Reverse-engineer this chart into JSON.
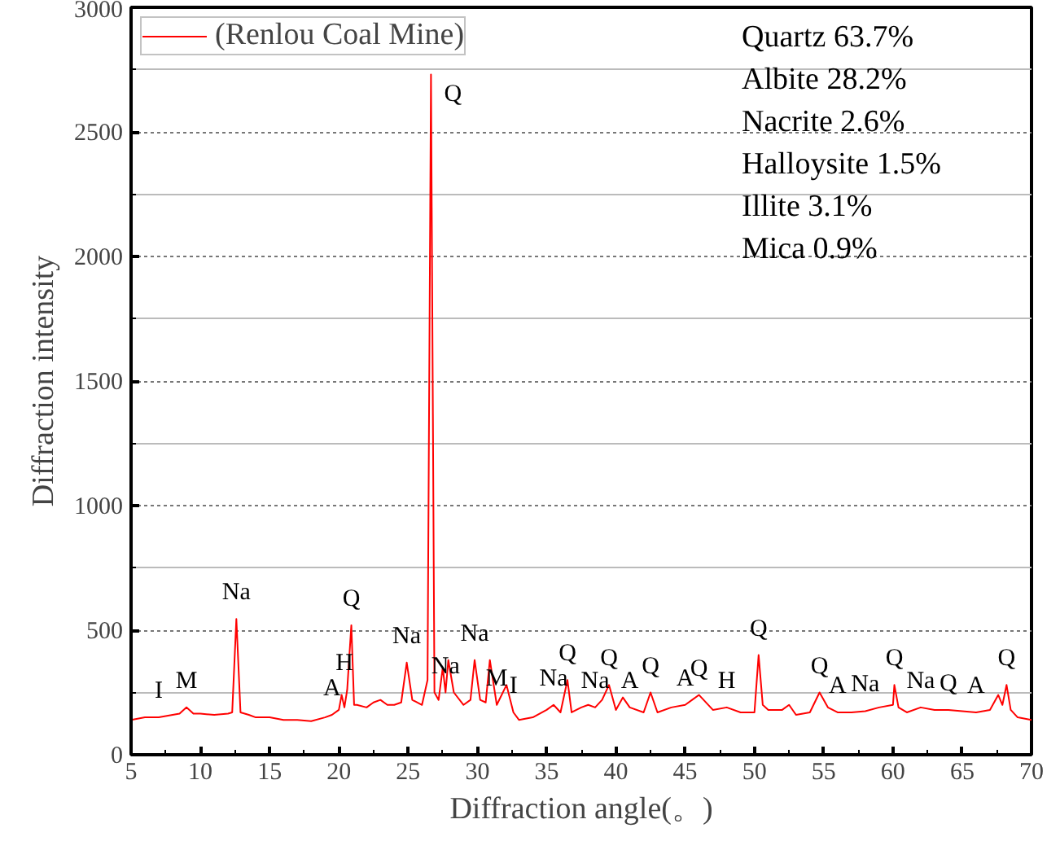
{
  "chart_data": {
    "type": "line",
    "xlabel": "Diffraction angle(。)",
    "ylabel": "Diffraction intensity",
    "x": [
      5,
      6,
      7,
      8,
      8.5,
      9,
      9.5,
      10,
      11,
      12,
      12.3,
      12.6,
      12.9,
      13.5,
      14,
      15,
      16,
      17,
      18,
      19,
      19.5,
      20,
      20.2,
      20.4,
      20.6,
      20.9,
      21.1,
      21.3,
      22,
      22.5,
      23,
      23.5,
      24,
      24.5,
      24.9,
      25.3,
      26,
      26.4,
      26.65,
      26.9,
      27.2,
      27.5,
      27.7,
      27.9,
      28.3,
      29,
      29.5,
      29.8,
      30.2,
      30.6,
      30.9,
      31.4,
      32.1,
      32.6,
      33,
      34,
      35,
      35.5,
      36,
      36.5,
      36.8,
      37.5,
      38,
      38.5,
      39,
      39.5,
      40,
      40.5,
      41,
      42,
      42.5,
      43,
      44,
      45,
      45.5,
      46,
      47,
      48,
      49,
      50,
      50.3,
      50.6,
      51,
      52,
      52.5,
      53,
      54,
      54.7,
      55.3,
      56,
      57,
      58,
      59,
      60,
      60.1,
      60.4,
      61,
      62,
      63,
      64,
      65,
      66,
      67,
      67.6,
      67.9,
      68.2,
      68.5,
      69,
      70
    ],
    "series": [
      {
        "name": "(Renlou Coal Mine)",
        "color": "#ff0000",
        "values": [
          140,
          150,
          150,
          160,
          165,
          190,
          165,
          165,
          160,
          165,
          170,
          545,
          170,
          160,
          150,
          150,
          140,
          140,
          135,
          150,
          160,
          180,
          240,
          190,
          260,
          520,
          200,
          200,
          190,
          210,
          220,
          200,
          200,
          210,
          370,
          220,
          200,
          300,
          2730,
          250,
          220,
          350,
          250,
          380,
          250,
          200,
          220,
          380,
          220,
          210,
          380,
          200,
          280,
          170,
          140,
          150,
          180,
          200,
          170,
          300,
          170,
          190,
          200,
          190,
          220,
          280,
          180,
          230,
          190,
          170,
          250,
          170,
          190,
          200,
          220,
          240,
          180,
          190,
          170,
          170,
          400,
          200,
          180,
          180,
          200,
          160,
          170,
          250,
          190,
          170,
          170,
          175,
          190,
          200,
          280,
          190,
          170,
          190,
          180,
          180,
          175,
          170,
          180,
          240,
          200,
          280,
          180,
          150,
          140
        ]
      }
    ],
    "xlim": [
      5,
      70
    ],
    "xticks": [
      5,
      10,
      15,
      20,
      25,
      30,
      35,
      40,
      45,
      50,
      55,
      60,
      65,
      70
    ],
    "ylim": [
      0,
      3000
    ],
    "yticks": [
      0,
      500,
      1000,
      1500,
      2000,
      2500,
      3000
    ],
    "grid": "y",
    "legend": "top left",
    "marker": "none",
    "line_style": "solid",
    "annotations": [
      "Quartz 63.7%",
      "Albite 28.2%",
      "Nacrite 2.6%",
      "Halloysite 1.5%",
      "Illite 3.1%",
      "Mica 0.9%",
      {
        "text": "I",
        "x": 7,
        "y": 150
      },
      {
        "text": "M",
        "x": 9,
        "y": 190
      },
      {
        "text": "Na",
        "x": 12.6,
        "y": 545
      },
      {
        "text": "A",
        "x": 19.5,
        "y": 160
      },
      {
        "text": "H",
        "x": 20.4,
        "y": 260
      },
      {
        "text": "Q",
        "x": 20.9,
        "y": 520
      },
      {
        "text": "Na",
        "x": 24.9,
        "y": 370
      },
      {
        "text": "Q",
        "x": 26.65,
        "y": 2730
      },
      {
        "text": "Na",
        "x": 27.7,
        "y": 250
      },
      {
        "text": "Na",
        "x": 29.8,
        "y": 380
      },
      {
        "text": "M",
        "x": 31.4,
        "y": 200
      },
      {
        "text": "I",
        "x": 32.6,
        "y": 170
      },
      {
        "text": "Na",
        "x": 35.5,
        "y": 200
      },
      {
        "text": "Q",
        "x": 36.5,
        "y": 300
      },
      {
        "text": "Na",
        "x": 38.5,
        "y": 190
      },
      {
        "text": "Q",
        "x": 39.5,
        "y": 280
      },
      {
        "text": "A",
        "x": 41,
        "y": 190
      },
      {
        "text": "Q",
        "x": 42.5,
        "y": 250
      },
      {
        "text": "A",
        "x": 45,
        "y": 200
      },
      {
        "text": "Q",
        "x": 46,
        "y": 240
      },
      {
        "text": "H",
        "x": 48,
        "y": 190
      },
      {
        "text": "Q",
        "x": 50.3,
        "y": 400
      },
      {
        "text": "Q",
        "x": 54.7,
        "y": 250
      },
      {
        "text": "A",
        "x": 56,
        "y": 170
      },
      {
        "text": "Na",
        "x": 58,
        "y": 175
      },
      {
        "text": "Q",
        "x": 60.1,
        "y": 280
      },
      {
        "text": "Na",
        "x": 62,
        "y": 190
      },
      {
        "text": "Q",
        "x": 64,
        "y": 180
      },
      {
        "text": "A",
        "x": 66,
        "y": 170
      },
      {
        "text": "Q",
        "x": 68.2,
        "y": 280
      }
    ]
  }
}
